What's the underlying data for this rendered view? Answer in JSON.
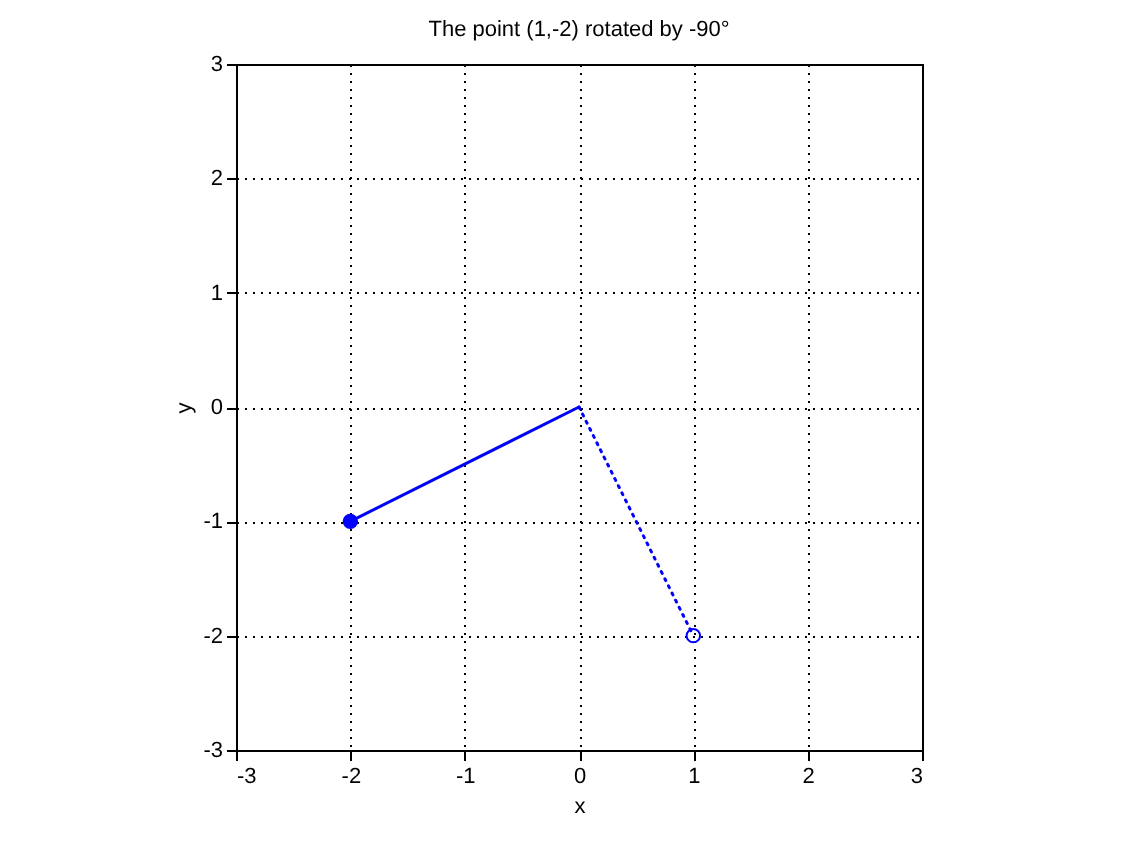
{
  "chart_data": {
    "type": "line",
    "title": "The point (1,-2) rotated by -90°",
    "xlabel": "x",
    "ylabel": "y",
    "xlim": [
      -3,
      3
    ],
    "ylim": [
      -3,
      3
    ],
    "xticks": [
      -3,
      -2,
      -1,
      0,
      1,
      2,
      3
    ],
    "yticks": [
      -3,
      -2,
      -1,
      0,
      1,
      2,
      3
    ],
    "grid": true,
    "series": [
      {
        "x": [
          0,
          -2
        ],
        "values": [
          0,
          -1
        ],
        "color": "#0000ff",
        "line_style": "solid",
        "marker": "circle"
      },
      {
        "x": [
          0,
          1
        ],
        "values": [
          0,
          -2
        ],
        "color": "#0000ff",
        "line_style": "dotted",
        "marker": "circle"
      }
    ]
  }
}
